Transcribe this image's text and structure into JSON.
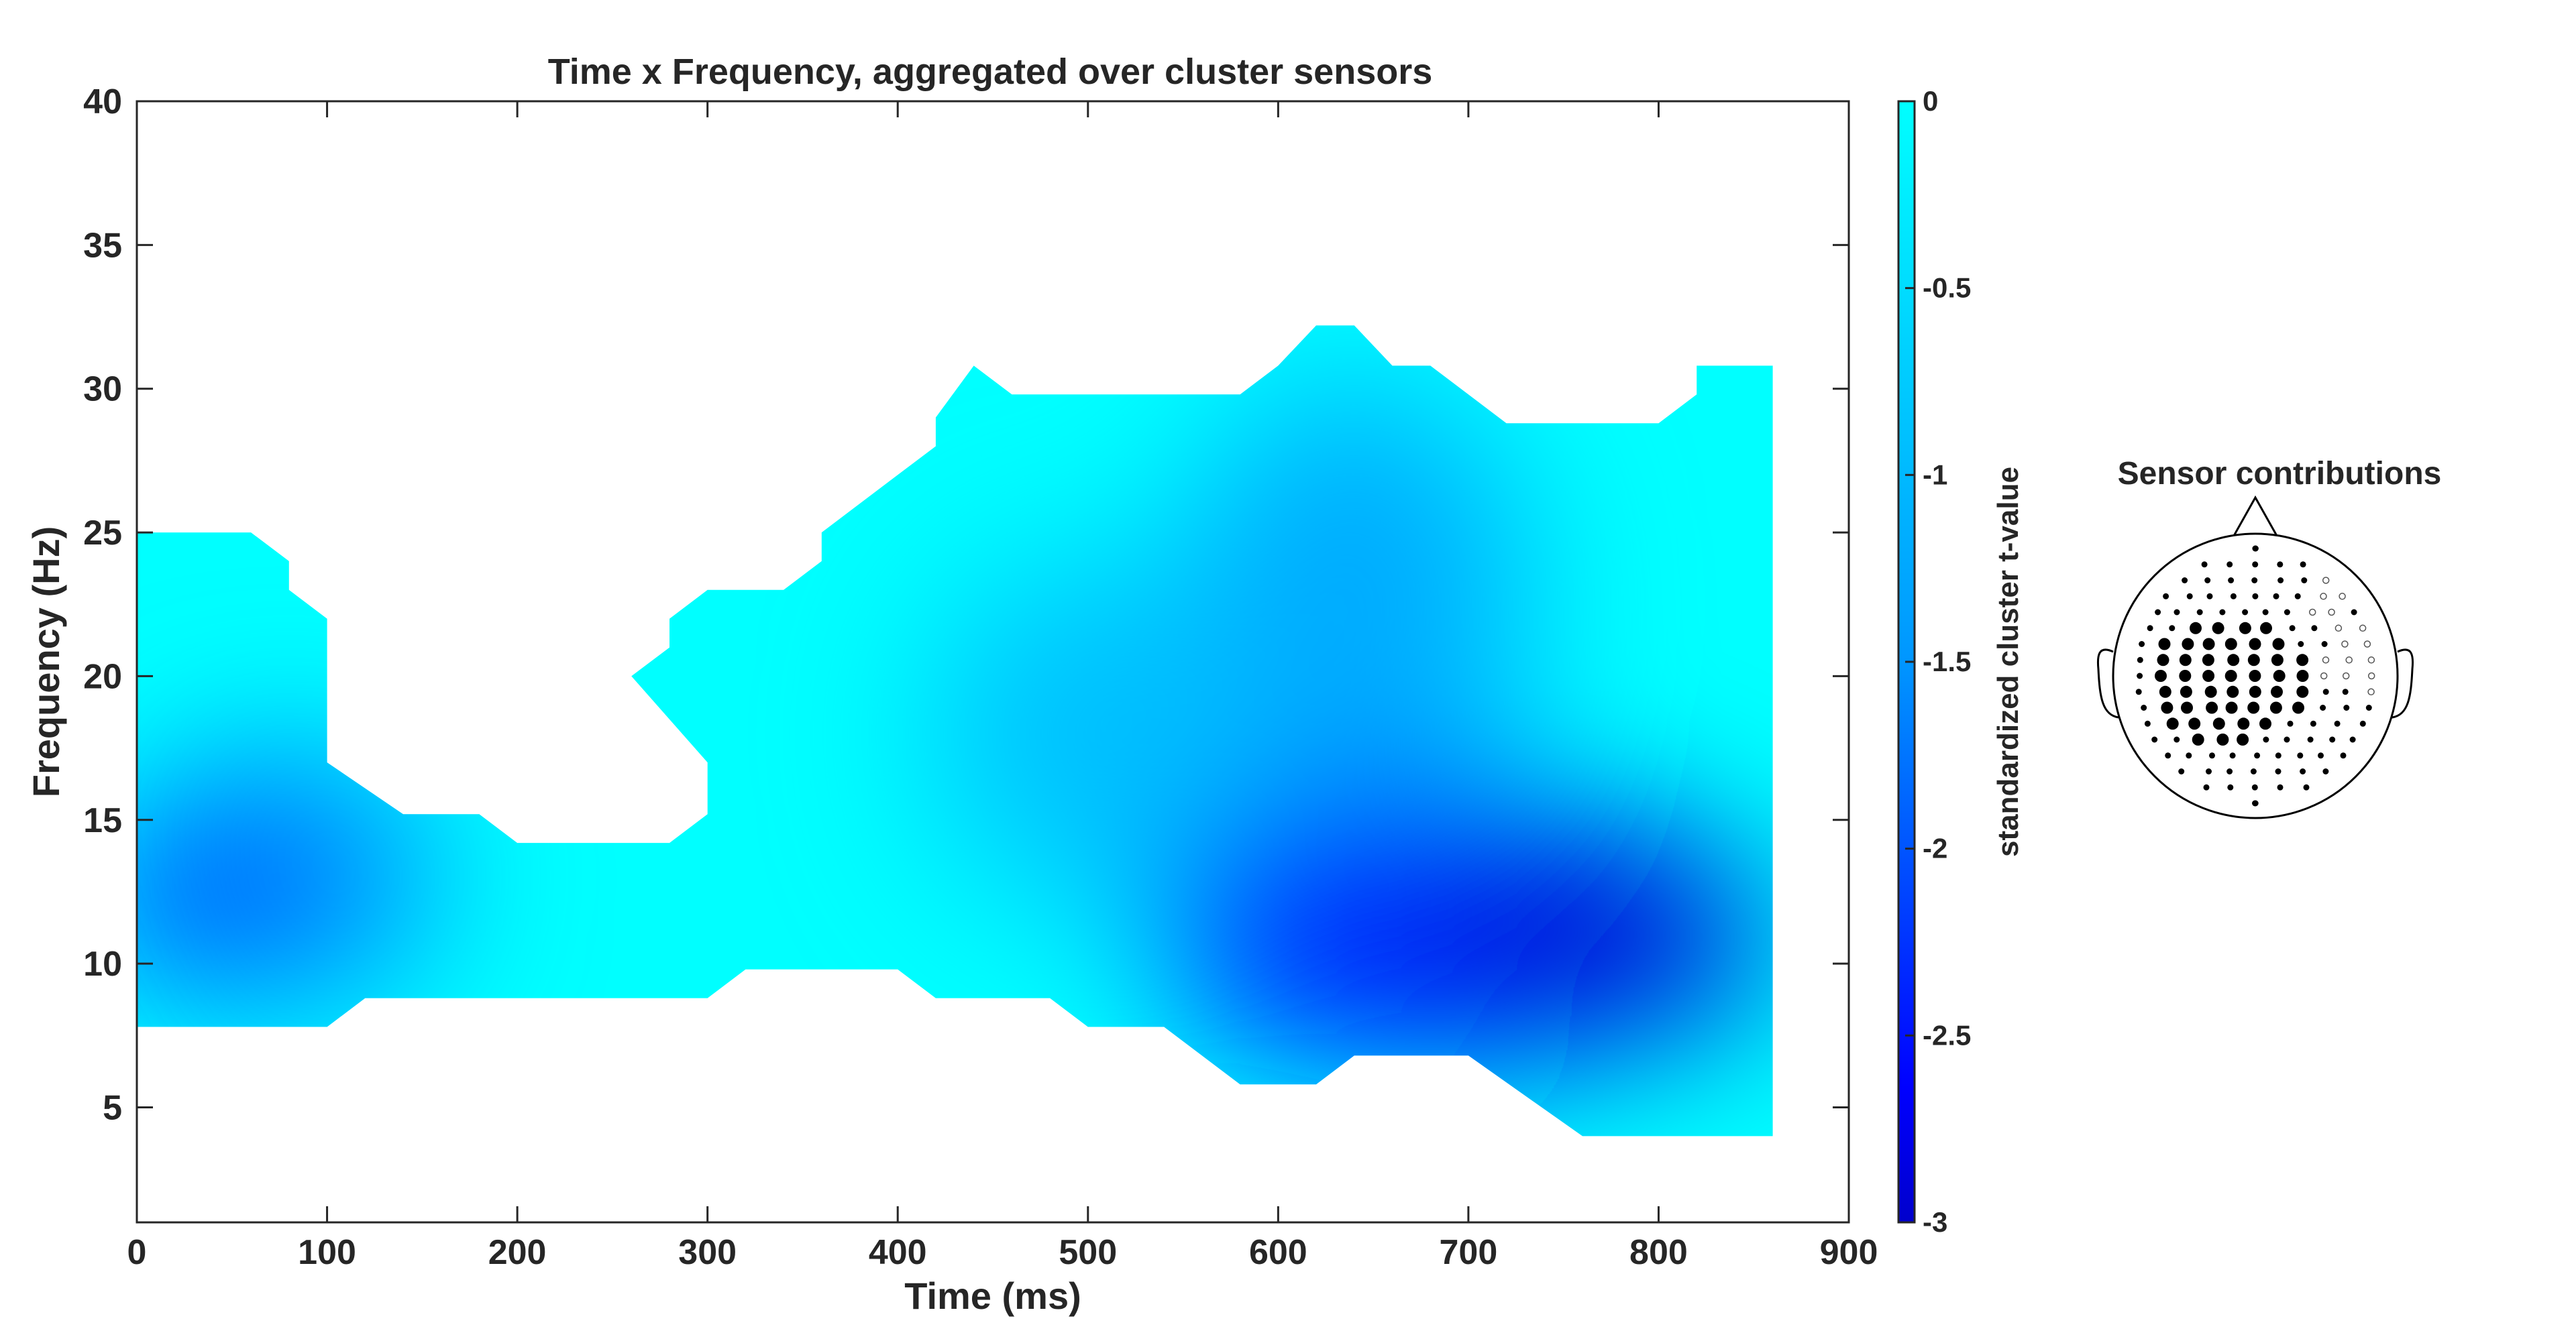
{
  "chart_data": [
    {
      "type": "heatmap",
      "title": "Time x Frequency, aggregated over cluster sensors",
      "xlabel": "Time (ms)",
      "ylabel": "Frequency (Hz)",
      "xlim": [
        0,
        900
      ],
      "ylim": [
        1,
        40
      ],
      "x_ticks": [
        0,
        100,
        200,
        300,
        400,
        500,
        600,
        700,
        800,
        900
      ],
      "x_tick_labels": [
        "0",
        "100",
        "200",
        "300",
        "400",
        "500",
        "600",
        "700",
        "800",
        "900"
      ],
      "y_ticks": [
        5,
        10,
        15,
        20,
        25,
        30,
        35,
        40
      ],
      "y_tick_labels": [
        "5",
        "10",
        "15",
        "20",
        "25",
        "30",
        "35",
        "40"
      ],
      "grid": false,
      "significant_region_outline": [
        [
          0,
          25
        ],
        [
          60,
          25
        ],
        [
          80,
          24
        ],
        [
          80,
          23
        ],
        [
          100,
          22
        ],
        [
          100,
          17
        ],
        [
          140,
          15.2
        ],
        [
          180,
          15.2
        ],
        [
          200,
          14.2
        ],
        [
          280,
          14.2
        ],
        [
          300,
          15.2
        ],
        [
          300,
          17
        ],
        [
          260,
          20
        ],
        [
          280,
          21
        ],
        [
          280,
          22
        ],
        [
          300,
          23
        ],
        [
          340,
          23
        ],
        [
          360,
          24
        ],
        [
          360,
          25
        ],
        [
          400,
          27
        ],
        [
          420,
          28
        ],
        [
          420,
          29
        ],
        [
          440,
          30.8
        ],
        [
          460,
          29.8
        ],
        [
          580,
          29.8
        ],
        [
          600,
          30.8
        ],
        [
          620,
          32.2
        ],
        [
          640,
          32.2
        ],
        [
          660,
          30.8
        ],
        [
          680,
          30.8
        ],
        [
          720,
          28.8
        ],
        [
          800,
          28.8
        ],
        [
          820,
          29.8
        ],
        [
          820,
          30.8
        ],
        [
          860,
          30.8
        ],
        [
          860,
          4
        ],
        [
          760,
          4
        ],
        [
          700,
          6.8
        ],
        [
          640,
          6.8
        ],
        [
          620,
          5.8
        ],
        [
          580,
          5.8
        ],
        [
          540,
          7.8
        ],
        [
          500,
          7.8
        ],
        [
          480,
          8.8
        ],
        [
          420,
          8.8
        ],
        [
          400,
          9.8
        ],
        [
          320,
          9.8
        ],
        [
          300,
          8.8
        ],
        [
          120,
          8.8
        ],
        [
          100,
          7.8
        ],
        [
          0,
          7.8
        ]
      ],
      "minima": [
        {
          "time": 30,
          "freq": 12.3,
          "value": -2.35
        },
        {
          "time": 770,
          "freq": 10.8,
          "value": -2.95
        }
      ]
    },
    {
      "type": "colorbar",
      "label": "standardized cluster t-value",
      "range": [
        -3,
        0
      ],
      "ticks": [
        0,
        -0.5,
        -1,
        -1.5,
        -2,
        -2.5,
        -3
      ],
      "tick_labels": [
        "0",
        "-0.5",
        "-1",
        "-1.5",
        "-2",
        "-2.5",
        "-3"
      ],
      "colormap": [
        "#0000CC",
        "#0000FF",
        "#0096FF",
        "#00FFFF"
      ]
    },
    {
      "type": "topoplot",
      "title": "Sensor contributions"
    }
  ]
}
